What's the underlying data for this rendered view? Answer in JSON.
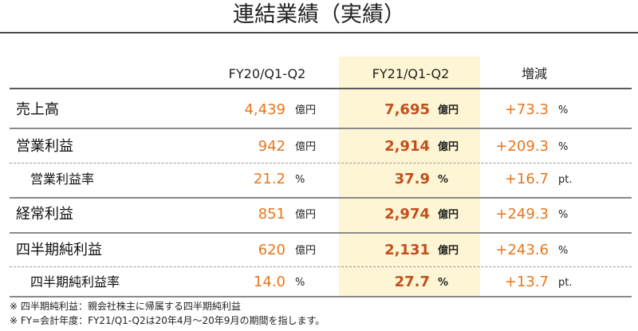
{
  "title": "連結業績（実績）",
  "columns": {
    "fy20": "FY20/Q1-Q2",
    "fy21": "FY21/Q1-Q2",
    "change": "増減"
  },
  "rows": [
    {
      "label": "売上高",
      "fy20": "4,439",
      "fy20_unit": "億円",
      "fy21": "7,695",
      "fy21_unit": "億円",
      "change": "+73.3",
      "change_unit": "%"
    },
    {
      "label": "営業利益",
      "fy20": "942",
      "fy20_unit": "億円",
      "fy21": "2,914",
      "fy21_unit": "億円",
      "change": "+209.3",
      "change_unit": "%"
    },
    {
      "label": "営業利益率",
      "fy20": "21.2",
      "fy20_unit": "%",
      "fy21": "37.9",
      "fy21_unit": "%",
      "change": "+16.7",
      "change_unit": "pt."
    },
    {
      "label": "経常利益",
      "fy20": "851",
      "fy20_unit": "億円",
      "fy21": "2,974",
      "fy21_unit": "億円",
      "change": "+249.3",
      "change_unit": "%"
    },
    {
      "label": "四半期純利益",
      "fy20": "620",
      "fy20_unit": "億円",
      "fy21": "2,131",
      "fy21_unit": "億円",
      "change": "+243.6",
      "change_unit": "%"
    },
    {
      "label": "四半期純利益率",
      "fy20": "14.0",
      "fy20_unit": "%",
      "fy21": "27.7",
      "fy21_unit": "%",
      "change": "+13.7",
      "change_unit": "pt."
    }
  ],
  "notes": [
    "※ 四半期純利益：親会社株主に帰属する四半期純利益",
    "※ FY=会計年度：FY21/Q1-Q2は20年4月～20年9月の期間を指します。"
  ]
}
